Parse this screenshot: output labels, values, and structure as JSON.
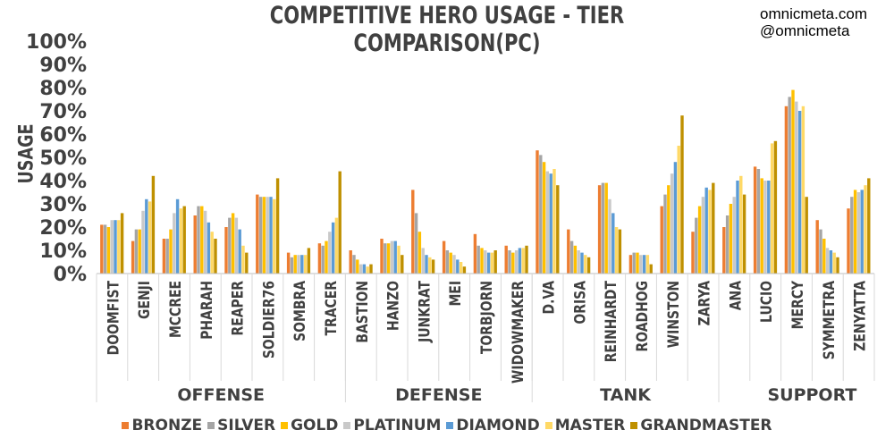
{
  "chart_data": {
    "type": "bar",
    "title": "COMPETITIVE HERO USAGE - TIER COMPARISON(PC)",
    "xlabel": "",
    "ylabel": "USAGE",
    "ylim": [
      0,
      100
    ],
    "yticks": [
      "0%",
      "10%",
      "20%",
      "30%",
      "40%",
      "50%",
      "60%",
      "70%",
      "80%",
      "90%",
      "100%"
    ],
    "grid": false,
    "legend_position": "bottom",
    "groups": [
      {
        "name": "OFFENSE",
        "count": 8
      },
      {
        "name": "DEFENSE",
        "count": 6
      },
      {
        "name": "TANK",
        "count": 6
      },
      {
        "name": "SUPPORT",
        "count": 6
      }
    ],
    "categories": [
      "DOOMFIST",
      "GENJI",
      "MCCREE",
      "PHARAH",
      "REAPER",
      "SOLDIER76",
      "SOMBRA",
      "TRACER",
      "BASTION",
      "HANZO",
      "JUNKRAT",
      "MEI",
      "TORBJORN",
      "WIDOWMAKER",
      "D.VA",
      "ORISA",
      "REINHARDT",
      "ROADHOG",
      "WINSTON",
      "ZARYA",
      "ANA",
      "LUCIO",
      "MERCY",
      "SYMMETRA",
      "ZENYATTA"
    ],
    "series": [
      {
        "name": "BRONZE",
        "color": "#ED7D31",
        "values": [
          21,
          14,
          15,
          25,
          20,
          34,
          9,
          13,
          10,
          15,
          36,
          14,
          17,
          12,
          53,
          19,
          38,
          8,
          29,
          18,
          20,
          46,
          72,
          23,
          28
        ]
      },
      {
        "name": "SILVER",
        "color": "#A5A5A5",
        "values": [
          21,
          19,
          15,
          29,
          24,
          33,
          7,
          12,
          8,
          13,
          26,
          10,
          12,
          10,
          51,
          14,
          39,
          9,
          34,
          24,
          25,
          45,
          76,
          19,
          33
        ]
      },
      {
        "name": "GOLD",
        "color": "#FFC000",
        "values": [
          20,
          19,
          19,
          29,
          26,
          33,
          8,
          14,
          6,
          13,
          18,
          9,
          11,
          9,
          48,
          12,
          39,
          9,
          38,
          29,
          30,
          41,
          79,
          15,
          36
        ]
      },
      {
        "name": "PLATINUM",
        "color": "#C9C9C9",
        "values": [
          23,
          27,
          26,
          27,
          24,
          33,
          8,
          18,
          4,
          14,
          11,
          8,
          10,
          10,
          44,
          10,
          32,
          8,
          43,
          33,
          33,
          40,
          74,
          11,
          35
        ]
      },
      {
        "name": "DIAMOND",
        "color": "#5B9BD5",
        "values": [
          23,
          32,
          32,
          22,
          19,
          33,
          8,
          22,
          4,
          14,
          8,
          6,
          9,
          11,
          43,
          9,
          26,
          8,
          48,
          37,
          40,
          40,
          70,
          10,
          36
        ]
      },
      {
        "name": "MASTER",
        "color": "#FFD966",
        "values": [
          23,
          31,
          28,
          18,
          12,
          32,
          8,
          24,
          3,
          12,
          7,
          5,
          9,
          11,
          45,
          8,
          20,
          8,
          55,
          36,
          42,
          56,
          72,
          9,
          38
        ]
      },
      {
        "name": "GRANDMASTER",
        "color": "#BF9000",
        "values": [
          26,
          42,
          29,
          15,
          9,
          41,
          11,
          44,
          4,
          8,
          6,
          3,
          10,
          12,
          38,
          7,
          19,
          4,
          68,
          39,
          34,
          57,
          33,
          7,
          41
        ]
      }
    ]
  },
  "credits": {
    "line1": "omnicmeta.com",
    "line2": "@omnicmeta"
  }
}
